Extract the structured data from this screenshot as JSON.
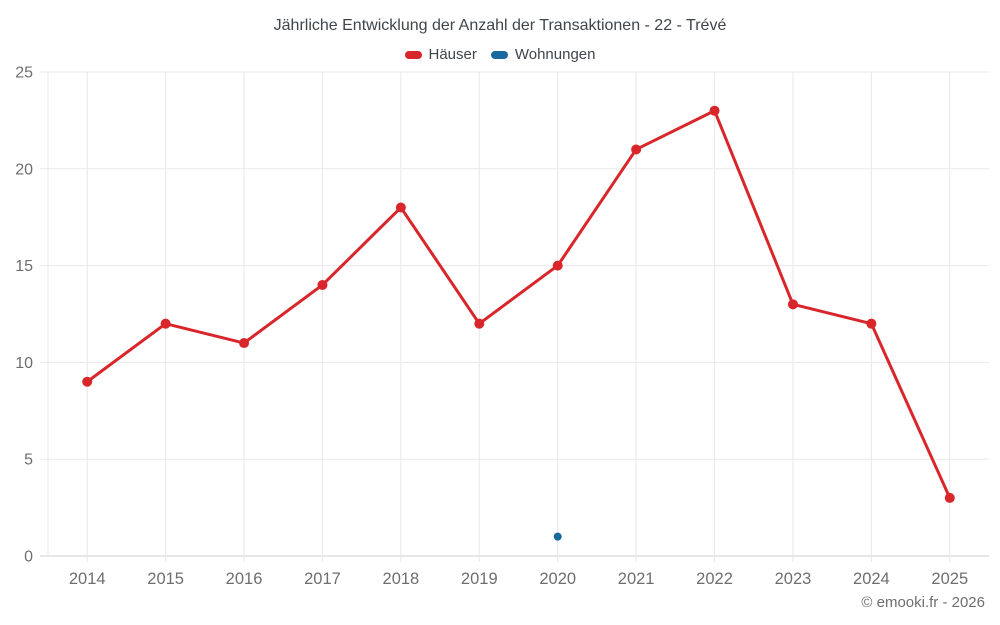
{
  "chart_data": {
    "type": "line",
    "title": "Jährliche Entwicklung der Anzahl der Transaktionen - 22 - Trévé",
    "categories": [
      "2014",
      "2015",
      "2016",
      "2017",
      "2018",
      "2019",
      "2020",
      "2021",
      "2022",
      "2023",
      "2024",
      "2025"
    ],
    "series": [
      {
        "name": "Häuser",
        "color": "#d9262b",
        "values": [
          9,
          12,
          11,
          14,
          18,
          12,
          15,
          21,
          23,
          13,
          12,
          3
        ]
      },
      {
        "name": "Wohnungen",
        "color": "#186a9e",
        "values": [
          null,
          null,
          null,
          null,
          null,
          null,
          1,
          null,
          null,
          null,
          null,
          null
        ]
      }
    ],
    "ylim": [
      0,
      25
    ],
    "ytick_step": 5,
    "yticks": [
      0,
      5,
      10,
      15,
      20,
      25
    ],
    "grid": true,
    "legend_position": "top",
    "xlabel": "",
    "ylabel": "",
    "colors": {
      "grid": "#e8e8e8",
      "axis": "#cfcfcf",
      "tick_label": "#6e6e6e"
    }
  },
  "footer": {
    "copyright": "© emooki.fr - 2026"
  }
}
